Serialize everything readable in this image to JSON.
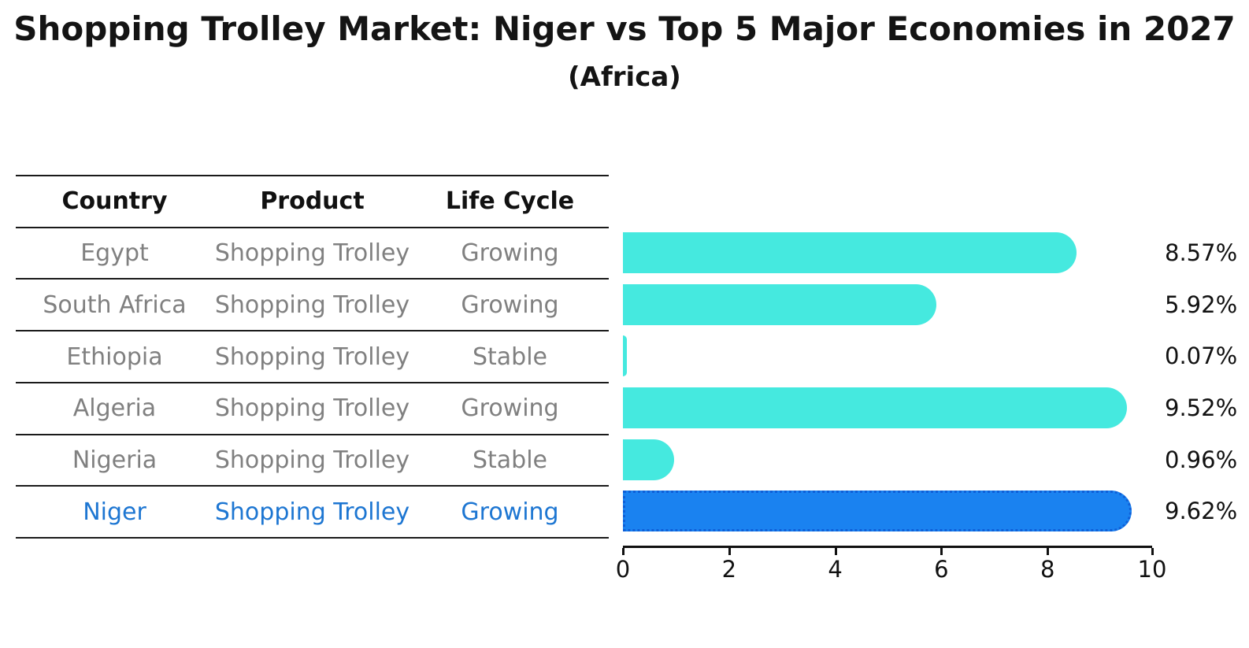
{
  "title": "Shopping Trolley Market: Niger vs Top 5 Major Economies in 2027",
  "subtitle": "(Africa)",
  "table": {
    "headers": [
      "Country",
      "Product",
      "Life Cycle"
    ],
    "rows": [
      {
        "country": "Egypt",
        "product": "Shopping Trolley",
        "life_cycle": "Growing",
        "highlight": false
      },
      {
        "country": "South Africa",
        "product": "Shopping Trolley",
        "life_cycle": "Growing",
        "highlight": false
      },
      {
        "country": "Ethiopia",
        "product": "Shopping Trolley",
        "life_cycle": "Stable",
        "highlight": false
      },
      {
        "country": "Algeria",
        "product": "Shopping Trolley",
        "life_cycle": "Growing",
        "highlight": false
      },
      {
        "country": "Nigeria",
        "product": "Shopping Trolley",
        "life_cycle": "Stable",
        "highlight": false
      },
      {
        "country": "Niger",
        "product": "Shopping Trolley",
        "life_cycle": "Growing",
        "highlight": true
      }
    ]
  },
  "chart_data": {
    "type": "bar",
    "orientation": "horizontal",
    "categories": [
      "Egypt",
      "South Africa",
      "Ethiopia",
      "Algeria",
      "Nigeria",
      "Niger"
    ],
    "values": [
      8.57,
      5.92,
      0.07,
      9.52,
      0.96,
      9.62
    ],
    "value_labels": [
      "8.57%",
      "5.92%",
      "0.07%",
      "9.52%",
      "0.96%",
      "9.62%"
    ],
    "xlim": [
      0,
      10
    ],
    "x_ticks": [
      0,
      2,
      4,
      6,
      8,
      10
    ],
    "grid": false,
    "legend": false,
    "highlight_index": 5
  },
  "colors": {
    "bar_color": "#45e9df",
    "highlight_bar_color": "#1a82f0",
    "highlight_bar_border": "#0f5fd7",
    "highlight_text": "#1d76d2",
    "table_text": "#808080",
    "header_text": "#111111",
    "axis_text": "#111111"
  }
}
